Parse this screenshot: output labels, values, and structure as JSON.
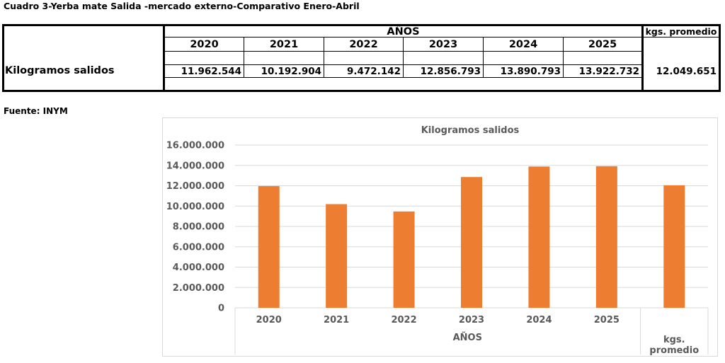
{
  "title": "Cuadro 3-Yerba mate Salida -mercado externo-Comparativo Enero-Abril",
  "table": {
    "group_header": "AÑOS",
    "avg_header": "kgs. promedio",
    "row_label": "Kilogramos salidos",
    "years": [
      "2020",
      "2021",
      "2022",
      "2023",
      "2024",
      "2025"
    ],
    "values": [
      "11.962.544",
      "10.192.904",
      "9.472.142",
      "12.856.793",
      "13.890.793",
      "13.922.732"
    ],
    "avg_value": "12.049.651"
  },
  "source": "Fuente: INYM",
  "colors": {
    "bar": "#ED7D31",
    "grid": "#d9d9d9",
    "axis_text": "#595959"
  },
  "chart_data": {
    "type": "bar",
    "title": "Kilogramos salidos",
    "categories": [
      "2020",
      "2021",
      "2022",
      "2023",
      "2024",
      "2025",
      "kgs. promedio"
    ],
    "category_lines": [
      [
        "2020"
      ],
      [
        "2021"
      ],
      [
        "2022"
      ],
      [
        "2023"
      ],
      [
        "2024"
      ],
      [
        "2025"
      ],
      [
        "kgs.",
        "promedio"
      ]
    ],
    "group_label": "AÑOS",
    "values": [
      11962544,
      10192904,
      9472142,
      12856793,
      13890793,
      13922732,
      12049651
    ],
    "ylim": [
      0,
      16000000
    ],
    "yticks": [
      0,
      2000000,
      4000000,
      6000000,
      8000000,
      10000000,
      12000000,
      14000000,
      16000000
    ],
    "ytick_labels": [
      "0",
      "2.000.000",
      "4.000.000",
      "6.000.000",
      "8.000.000",
      "10.000.000",
      "12.000.000",
      "14.000.000",
      "16.000.000"
    ],
    "grid": true,
    "legend": "none"
  }
}
